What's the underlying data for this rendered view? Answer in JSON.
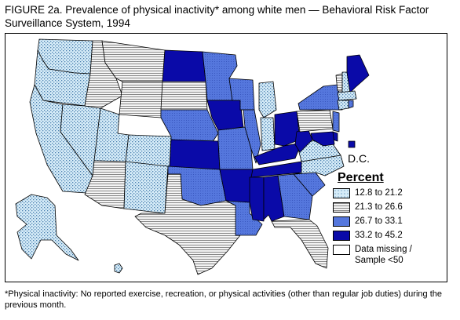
{
  "figure": {
    "title": "FIGURE 2a. Prevalence of physical inactivity* among white men — Behavioral Risk Factor Surveillance System, 1994",
    "footnote": "*Physical inactivity: No reported exercise, recreation, or physical activities (other than regular job duties) during the previous month."
  },
  "legend": {
    "heading": "Percent",
    "items": [
      {
        "label": "12.8 to 21.2",
        "pattern": "dots-light",
        "color": "#cde7f5"
      },
      {
        "label": "21.3 to 26.6",
        "pattern": "hlines-gray",
        "color": "#e8e8e8"
      },
      {
        "label": "26.7 to 33.1",
        "pattern": "medium-blue",
        "color": "#5b7bd8"
      },
      {
        "label": "33.2 to 45.2",
        "pattern": "dark-blue",
        "color": "#0a0aa8"
      },
      {
        "label": "Data missing / Sample <50",
        "pattern": "white",
        "color": "#ffffff"
      }
    ]
  },
  "dc": {
    "label": "D.C.",
    "category": "33.2 to 45.2"
  },
  "states": {
    "WA": "12.8 to 21.2",
    "OR": "12.8 to 21.2",
    "CA": "12.8 to 21.2",
    "NV": "12.8 to 21.2",
    "ID": "21.3 to 26.6",
    "MT": "21.3 to 26.6",
    "WY": "21.3 to 26.6",
    "UT": "12.8 to 21.2",
    "CO": "12.8 to 21.2",
    "AZ": "21.3 to 26.6",
    "NM": "12.8 to 21.2",
    "TX": "21.3 to 26.6",
    "ND": "33.2 to 45.2",
    "SD": "21.3 to 26.6",
    "NE": "26.7 to 33.1",
    "KS": "33.2 to 45.2",
    "OK": "26.7 to 33.1",
    "MN": "26.7 to 33.1",
    "IA": "33.2 to 45.2",
    "MO": "26.7 to 33.1",
    "AR": "33.2 to 45.2",
    "LA": "26.7 to 33.1",
    "WI": "26.7 to 33.1",
    "IL": "26.7 to 33.1",
    "MI": "12.8 to 21.2",
    "IN": "12.8 to 21.2",
    "OH": "33.2 to 45.2",
    "KY": "33.2 to 45.2",
    "TN": "33.2 to 45.2",
    "MS": "33.2 to 45.2",
    "AL": "33.2 to 45.2",
    "GA": "26.7 to 33.1",
    "FL": "21.3 to 26.6",
    "SC": "26.7 to 33.1",
    "NC": "12.8 to 21.2",
    "VA": "12.8 to 21.2",
    "WV": "33.2 to 45.2",
    "PA": "21.3 to 26.6",
    "NY": "26.7 to 33.1",
    "NJ": "26.7 to 33.1",
    "DE": "33.2 to 45.2",
    "MD": "33.2 to 45.2",
    "VT": "21.3 to 26.6",
    "NH": "12.8 to 21.2",
    "ME": "33.2 to 45.2",
    "MA": "12.8 to 21.2",
    "CT": "12.8 to 21.2",
    "RI": "26.7 to 33.1",
    "AK": "12.8 to 21.2",
    "HI": "12.8 to 21.2"
  }
}
